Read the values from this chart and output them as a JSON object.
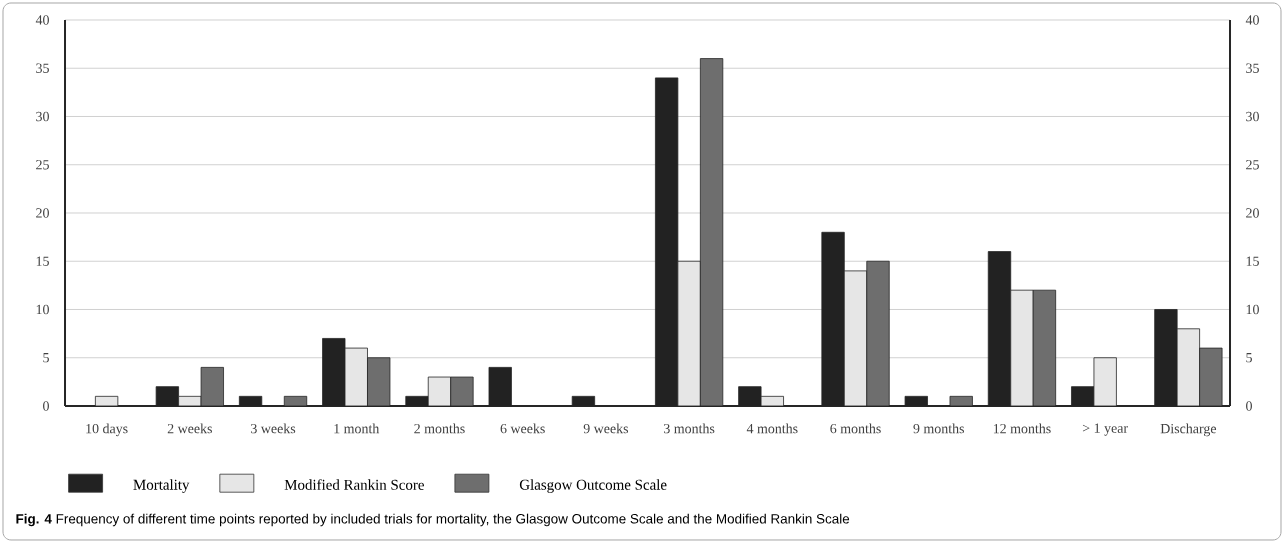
{
  "chart_data": {
    "type": "bar",
    "categories": [
      "10 days",
      "2 weeks",
      "3 weeks",
      "1 month",
      "2 months",
      "6 weeks",
      "9 weeks",
      "3 months",
      "4 months",
      "6 months",
      "9 months",
      "12 months",
      "> 1 year",
      "Discharge"
    ],
    "series": [
      {
        "name": "Mortality",
        "color": "#222222",
        "values": [
          0,
          2,
          1,
          7,
          1,
          4,
          1,
          34,
          2,
          18,
          1,
          16,
          2,
          10
        ]
      },
      {
        "name": "Modified Rankin Score",
        "color": "#e6e6e6",
        "values": [
          1,
          1,
          0,
          6,
          3,
          0,
          0,
          15,
          1,
          14,
          0,
          12,
          5,
          8
        ]
      },
      {
        "name": "Glasgow Outcome Scale",
        "color": "#6e6e6e",
        "values": [
          0,
          4,
          1,
          5,
          3,
          0,
          0,
          36,
          0,
          15,
          1,
          12,
          0,
          6
        ]
      }
    ],
    "ylim": [
      0,
      40
    ],
    "yticks": [
      0,
      5,
      10,
      15,
      20,
      25,
      30,
      35,
      40
    ],
    "y2lim": [
      0,
      40
    ],
    "y2ticks": [
      0,
      5,
      10,
      15,
      20,
      25,
      30,
      35,
      40
    ],
    "grid": "y",
    "legend": "bottom",
    "annotations": [
      "**Fig. 4** Frequency of different time points reported by included trials for mortality, the Glasgow Outcome Scale and the Modified Rankin Scale"
    ]
  }
}
